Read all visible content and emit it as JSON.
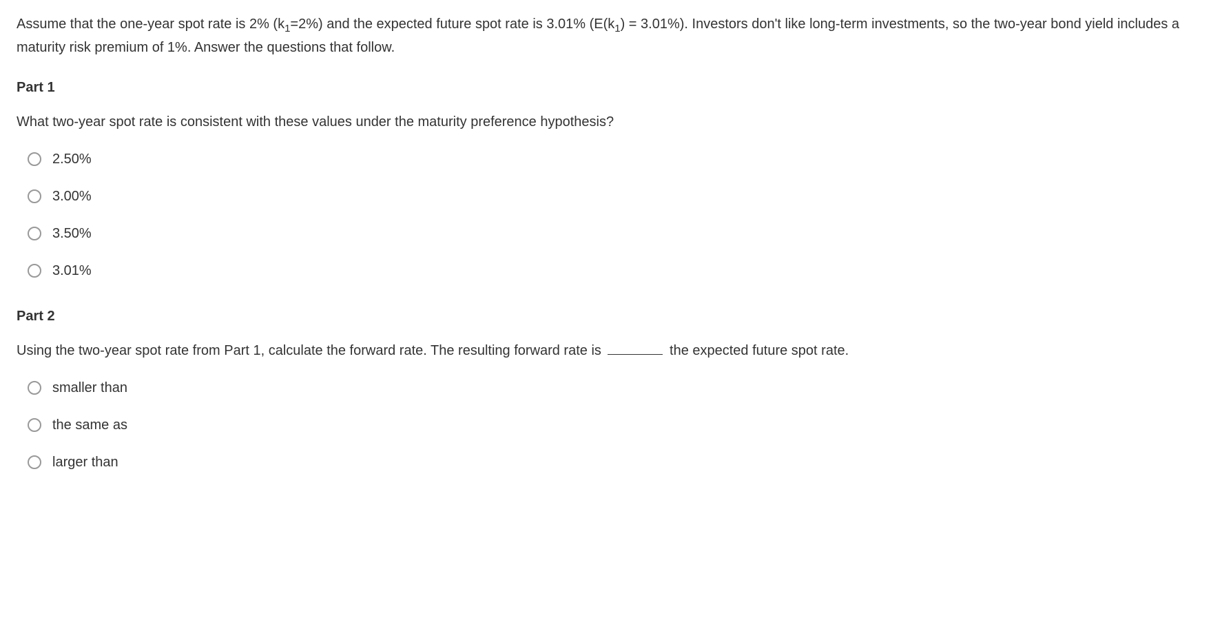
{
  "intro": {
    "text_part1": "Assume that the one-year spot rate is 2% (k",
    "sub1": "1",
    "text_part2": "=2%) and the expected future spot rate is 3.01% (E(k",
    "sub2": "1",
    "text_part3": ") = 3.01%). Investors don't like long-term investments, so the two-year bond yield includes a maturity risk premium of 1%. Answer the questions that follow."
  },
  "part1": {
    "heading": "Part 1",
    "question": "What two-year spot rate is consistent with these values under the maturity preference hypothesis?",
    "options": [
      "2.50%",
      "3.00%",
      "3.50%",
      "3.01%"
    ]
  },
  "part2": {
    "heading": "Part 2",
    "question_before": "Using the two-year spot rate from Part 1, calculate the forward rate. The resulting forward rate is ",
    "question_after": " the expected future spot rate.",
    "options": [
      "smaller than",
      "the same as",
      "larger than"
    ]
  },
  "colors": {
    "text": "#333333",
    "radio_border": "#999999",
    "background": "#ffffff"
  }
}
